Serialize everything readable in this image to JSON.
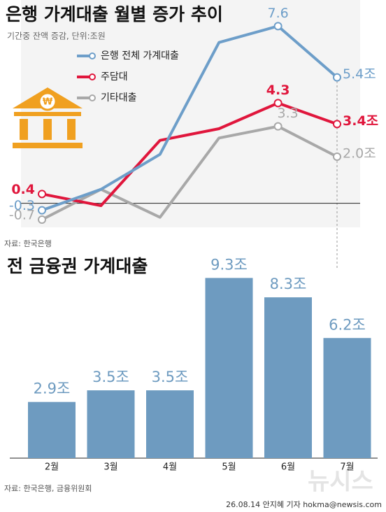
{
  "chart_data": [
    {
      "type": "line",
      "title": "은행 가계대출 월별 증가 추이",
      "subtitle": "기간중 잔액 증감, 단위:조원",
      "source": "자료: 한국은행",
      "categories": [
        null,
        null,
        null,
        null,
        null,
        null
      ],
      "ylim": [
        -1,
        8
      ],
      "series": [
        {
          "name": "은행 전체 가계대출",
          "color": "#6d9ec9",
          "values": [
            -0.3,
            0.6,
            2.1,
            6.9,
            7.6,
            5.4
          ],
          "value_labels": [
            "-0.3",
            null,
            null,
            null,
            "7.6",
            "5.4조"
          ]
        },
        {
          "name": "주담대",
          "color": "#e0163c",
          "values": [
            0.4,
            -0.1,
            2.7,
            3.2,
            4.3,
            3.4
          ],
          "value_labels": [
            "0.4",
            null,
            null,
            null,
            "4.3",
            "3.4조"
          ]
        },
        {
          "name": "기타대출",
          "color": "#a8a8a8",
          "values": [
            -0.7,
            0.6,
            -0.6,
            2.8,
            3.3,
            2.0
          ],
          "value_labels": [
            "-0.7",
            null,
            null,
            null,
            "3.3",
            "2.0조"
          ]
        }
      ]
    },
    {
      "type": "bar",
      "title": "전 금융권 가계대출",
      "source": "자료: 한국은행, 금융위원회",
      "categories": [
        "2월",
        "3월",
        "4월",
        "5월",
        "6월",
        "7월"
      ],
      "values": [
        2.9,
        3.5,
        3.5,
        9.3,
        8.3,
        6.2
      ],
      "value_labels": [
        "2.9조",
        "3.5조",
        "3.5조",
        "9.3조",
        "8.3조",
        "6.2조"
      ],
      "color": "#6e9bc0",
      "ylim": [
        0,
        10
      ]
    }
  ],
  "footer": {
    "credit": "26.08.14 안지혜 기자 hokma@newsis.com",
    "logo": "뉴시스"
  }
}
